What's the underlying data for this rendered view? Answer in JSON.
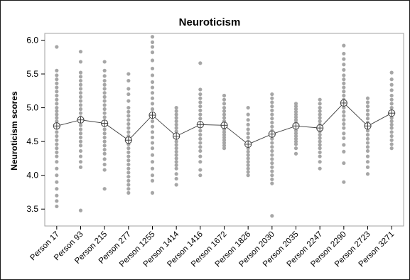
{
  "chart_data": {
    "type": "scatter",
    "title": "Neuroticism",
    "xlabel": "",
    "ylabel": "Neuroticism scores",
    "ylim": [
      3.25,
      6.1
    ],
    "yticks": [
      "3.5",
      "4.0",
      "4.5",
      "5.0",
      "5.5",
      "6.0"
    ],
    "grid": false,
    "legend": "none",
    "categories": [
      "Person 17",
      "Person 93",
      "Person 215",
      "Person 277",
      "Person 1255",
      "Person 1414",
      "Person 1416",
      "Person 1672",
      "Person 1826",
      "Person 2030",
      "Person 2035",
      "Person 2247",
      "Person 2290",
      "Person 2723",
      "Person 3271"
    ],
    "colors": {
      "points": "#a6a6a6",
      "mean_line": "#404040",
      "axis": "#000000",
      "plot_border": "#a0a0a0"
    },
    "mean_marker": "circle-cross",
    "means": [
      4.73,
      4.82,
      4.77,
      4.52,
      4.89,
      4.58,
      4.75,
      4.74,
      4.46,
      4.61,
      4.73,
      4.7,
      5.07,
      4.73,
      4.92
    ],
    "points": [
      [
        5.9,
        5.55,
        5.48,
        5.42,
        5.36,
        5.3,
        5.24,
        5.18,
        5.12,
        5.06,
        5.0,
        4.95,
        4.9,
        4.85,
        4.8,
        4.75,
        4.7,
        4.64,
        4.58,
        4.52,
        4.46,
        4.4,
        4.34,
        4.28,
        4.2,
        4.1,
        4.0,
        3.9,
        3.8,
        3.7,
        3.62,
        3.54
      ],
      [
        5.83,
        5.68,
        5.52,
        5.46,
        5.4,
        5.34,
        5.28,
        5.22,
        5.16,
        5.1,
        5.04,
        4.98,
        4.92,
        4.86,
        4.8,
        4.74,
        4.68,
        4.62,
        4.56,
        4.5,
        4.44,
        4.36,
        4.28,
        4.2,
        4.12,
        3.48
      ],
      [
        5.68,
        5.55,
        5.47,
        5.4,
        5.34,
        5.28,
        5.22,
        5.16,
        5.1,
        5.04,
        4.98,
        4.92,
        4.86,
        4.8,
        4.74,
        4.68,
        4.62,
        4.56,
        4.5,
        4.44,
        4.38,
        4.32,
        4.24,
        4.16,
        4.08,
        3.8
      ],
      [
        5.5,
        5.4,
        5.28,
        5.2,
        5.1,
        5.0,
        4.94,
        4.88,
        4.82,
        4.76,
        4.7,
        4.64,
        4.58,
        4.52,
        4.46,
        4.4,
        4.34,
        4.28,
        4.22,
        4.16,
        4.1,
        4.04,
        3.98,
        3.92,
        3.86,
        3.8,
        3.74
      ],
      [
        6.05,
        5.97,
        5.9,
        5.82,
        5.7,
        5.58,
        5.48,
        5.38,
        5.3,
        5.22,
        5.14,
        5.06,
        4.98,
        4.92,
        4.86,
        4.8,
        4.72,
        4.64,
        4.56,
        4.48,
        4.4,
        4.3,
        4.2,
        4.1,
        4.0,
        3.92,
        3.74
      ],
      [
        5.0,
        4.95,
        4.9,
        4.85,
        4.8,
        4.75,
        4.7,
        4.65,
        4.6,
        4.55,
        4.5,
        4.45,
        4.4,
        4.35,
        4.3,
        4.25,
        4.2,
        4.15,
        4.1,
        4.02,
        3.95,
        3.86
      ],
      [
        5.66,
        5.27,
        5.2,
        5.14,
        5.08,
        5.02,
        4.96,
        4.9,
        4.84,
        4.78,
        4.72,
        4.66,
        4.6,
        4.54,
        4.48,
        4.42,
        4.36,
        4.28,
        4.2,
        4.08,
        4.0
      ],
      [
        5.18,
        5.12,
        5.06,
        5.0,
        4.95,
        4.9,
        4.85,
        4.8,
        4.76,
        4.72,
        4.68,
        4.64,
        4.6,
        4.56,
        4.52,
        4.48,
        4.44,
        4.4
      ],
      [
        5.0,
        4.9,
        4.82,
        4.75,
        4.68,
        4.62,
        4.56,
        4.5,
        4.45,
        4.4,
        4.35,
        4.3,
        4.25,
        4.2,
        4.15,
        4.1,
        4.05,
        4.0
      ],
      [
        5.2,
        5.14,
        5.08,
        5.02,
        4.96,
        4.9,
        4.84,
        4.78,
        4.72,
        4.66,
        4.6,
        4.54,
        4.48,
        4.42,
        4.36,
        4.3,
        4.24,
        4.18,
        4.12,
        4.06,
        4.0,
        3.94,
        3.88,
        3.4
      ],
      [
        5.06,
        5.02,
        4.98,
        4.94,
        4.9,
        4.86,
        4.82,
        4.78,
        4.74,
        4.7,
        4.66,
        4.62,
        4.58,
        4.54,
        4.5,
        4.46,
        4.4,
        4.32
      ],
      [
        5.12,
        5.06,
        5.0,
        4.95,
        4.9,
        4.85,
        4.8,
        4.75,
        4.7,
        4.65,
        4.6,
        4.55,
        4.5,
        4.45,
        4.4,
        4.34,
        4.28,
        4.2,
        4.1
      ],
      [
        5.92,
        5.8,
        5.72,
        5.64,
        5.56,
        5.48,
        5.42,
        5.36,
        5.3,
        5.24,
        5.18,
        5.12,
        5.06,
        5.0,
        4.94,
        4.88,
        4.82,
        4.76,
        4.7,
        4.62,
        4.55,
        4.45,
        4.35,
        4.18,
        3.9
      ],
      [
        5.14,
        5.08,
        5.02,
        4.96,
        4.9,
        4.84,
        4.78,
        4.72,
        4.66,
        4.6,
        4.54,
        4.48,
        4.42,
        4.36,
        4.28,
        4.2,
        4.12,
        4.02
      ],
      [
        5.52,
        5.42,
        5.34,
        5.26,
        5.18,
        5.12,
        5.06,
        5.0,
        4.95,
        4.9,
        4.85,
        4.8,
        4.75,
        4.7,
        4.64,
        4.58,
        4.52,
        4.46,
        4.4
      ]
    ]
  }
}
